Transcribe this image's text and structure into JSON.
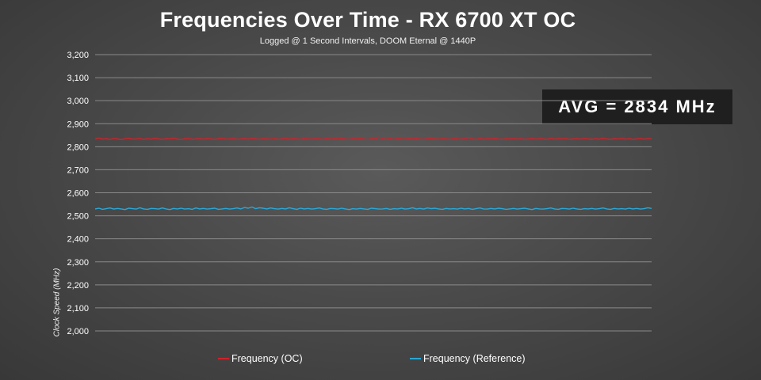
{
  "chart_data": {
    "type": "line",
    "title": "Frequencies Over Time - RX 6700 XT OC",
    "subtitle": "Logged @ 1 Second Intervals, DOOM Eternal @ 1440P",
    "xlabel": "",
    "ylabel": "Clock Speed (MHz)",
    "ylim": [
      2000,
      3200
    ],
    "yticks": [
      "3,200",
      "3,100",
      "3,000",
      "2,900",
      "2,800",
      "2,700",
      "2,600",
      "2,500",
      "2,400",
      "2,300",
      "2,200",
      "2,100",
      "2,000"
    ],
    "grid": true,
    "legend_position": "bottom",
    "annotation": "AVG = 2834 MHz",
    "series": [
      {
        "name": "Frequency (OC)",
        "color": "#d0222a",
        "values": [
          2834,
          2838,
          2833,
          2835,
          2832,
          2836,
          2834,
          2831,
          2835,
          2837,
          2833,
          2834,
          2836,
          2832,
          2835,
          2833,
          2837,
          2834,
          2832,
          2835,
          2834,
          2838,
          2833,
          2831,
          2835,
          2836,
          2832,
          2834,
          2835,
          2833,
          2836,
          2834,
          2832,
          2835,
          2837,
          2833,
          2834,
          2836,
          2832,
          2834,
          2835,
          2833,
          2837,
          2834,
          2832,
          2836,
          2834,
          2833,
          2835,
          2832,
          2834,
          2837,
          2833,
          2835,
          2834,
          2832,
          2836,
          2834,
          2833,
          2835,
          2834,
          2832,
          2836,
          2833,
          2835,
          2834,
          2838,
          2833,
          2832,
          2835,
          2834,
          2836,
          2833,
          2831,
          2835,
          2834,
          2842,
          2834,
          2833,
          2835,
          2832,
          2836,
          2834,
          2833,
          2835,
          2834,
          2837,
          2833,
          2832,
          2835,
          2836,
          2834,
          2833,
          2835,
          2834,
          2832,
          2836,
          2834,
          2833,
          2835,
          2840,
          2834,
          2832,
          2836,
          2833,
          2835,
          2834,
          2837,
          2833,
          2832,
          2835,
          2834,
          2836,
          2833,
          2835,
          2832,
          2834,
          2836,
          2833,
          2835,
          2834,
          2832,
          2837,
          2833,
          2835,
          2834,
          2836,
          2832,
          2834,
          2835,
          2833,
          2836,
          2834,
          2832,
          2835,
          2833,
          2837,
          2834,
          2832,
          2835,
          2834,
          2836,
          2833,
          2835,
          2832,
          2834,
          2836,
          2833,
          2835,
          2834
        ]
      },
      {
        "name": "Frequency (Reference)",
        "color": "#2aa7d6",
        "values": [
          2530,
          2533,
          2528,
          2531,
          2534,
          2529,
          2532,
          2530,
          2527,
          2533,
          2531,
          2529,
          2535,
          2530,
          2528,
          2532,
          2531,
          2529,
          2534,
          2530,
          2527,
          2532,
          2530,
          2533,
          2529,
          2531,
          2528,
          2534,
          2530,
          2532,
          2529,
          2531,
          2533,
          2528,
          2530,
          2532,
          2529,
          2531,
          2534,
          2530,
          2536,
          2533,
          2538,
          2531,
          2535,
          2533,
          2530,
          2534,
          2531,
          2529,
          2532,
          2530,
          2535,
          2531,
          2528,
          2533,
          2530,
          2532,
          2529,
          2531,
          2534,
          2530,
          2528,
          2532,
          2531,
          2529,
          2533,
          2530,
          2527,
          2531,
          2529,
          2532,
          2530,
          2528,
          2533,
          2531,
          2529,
          2530,
          2532,
          2528,
          2531,
          2530,
          2533,
          2529,
          2531,
          2535,
          2530,
          2532,
          2529,
          2534,
          2531,
          2533,
          2530,
          2528,
          2532,
          2530,
          2531,
          2529,
          2533,
          2530,
          2532,
          2528,
          2531,
          2534,
          2530,
          2529,
          2532,
          2530,
          2533,
          2531,
          2528,
          2530,
          2532,
          2529,
          2531,
          2533,
          2530,
          2527,
          2532,
          2530,
          2529,
          2531,
          2534,
          2530,
          2528,
          2532,
          2531,
          2529,
          2533,
          2530,
          2528,
          2531,
          2530,
          2532,
          2529,
          2531,
          2534,
          2530,
          2528,
          2532,
          2530,
          2531,
          2529,
          2533,
          2530,
          2532,
          2529,
          2531,
          2535,
          2532
        ]
      }
    ]
  }
}
